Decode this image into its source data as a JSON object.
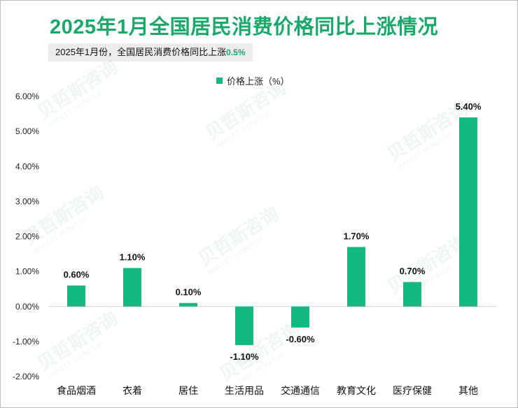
{
  "title": "2025年1月全国居民消费价格同比上涨情况",
  "subtitle": {
    "text": "2025年1月份，全国居民消费价格同比上涨",
    "highlight": "0.5%"
  },
  "watermark": {
    "brand": "贝哲斯咨询",
    "sub": "MARKET MONITOR"
  },
  "colors": {
    "title": "#1aa86a",
    "bar": "#12b981"
  },
  "chart_data": {
    "type": "bar",
    "categories": [
      "食品烟酒",
      "衣着",
      "居住",
      "生活用品",
      "交通通信",
      "教育文化",
      "医疗保健",
      "其他"
    ],
    "series": [
      {
        "name": "价格上涨（%）",
        "values": [
          0.6,
          1.1,
          0.1,
          -1.1,
          -0.6,
          1.7,
          0.7,
          5.4
        ]
      }
    ],
    "data_labels": [
      "0.60%",
      "1.10%",
      "0.10%",
      "-1.10%",
      "-0.60%",
      "1.70%",
      "0.70%",
      "5.40%"
    ],
    "y_ticks": [
      "6.00%",
      "5.00%",
      "4.00%",
      "3.00%",
      "2.00%",
      "1.00%",
      "0.00%",
      "-1.00%",
      "-2.00%"
    ],
    "ylim": [
      -2,
      6
    ],
    "legend_position": "top-center",
    "grid": false
  }
}
